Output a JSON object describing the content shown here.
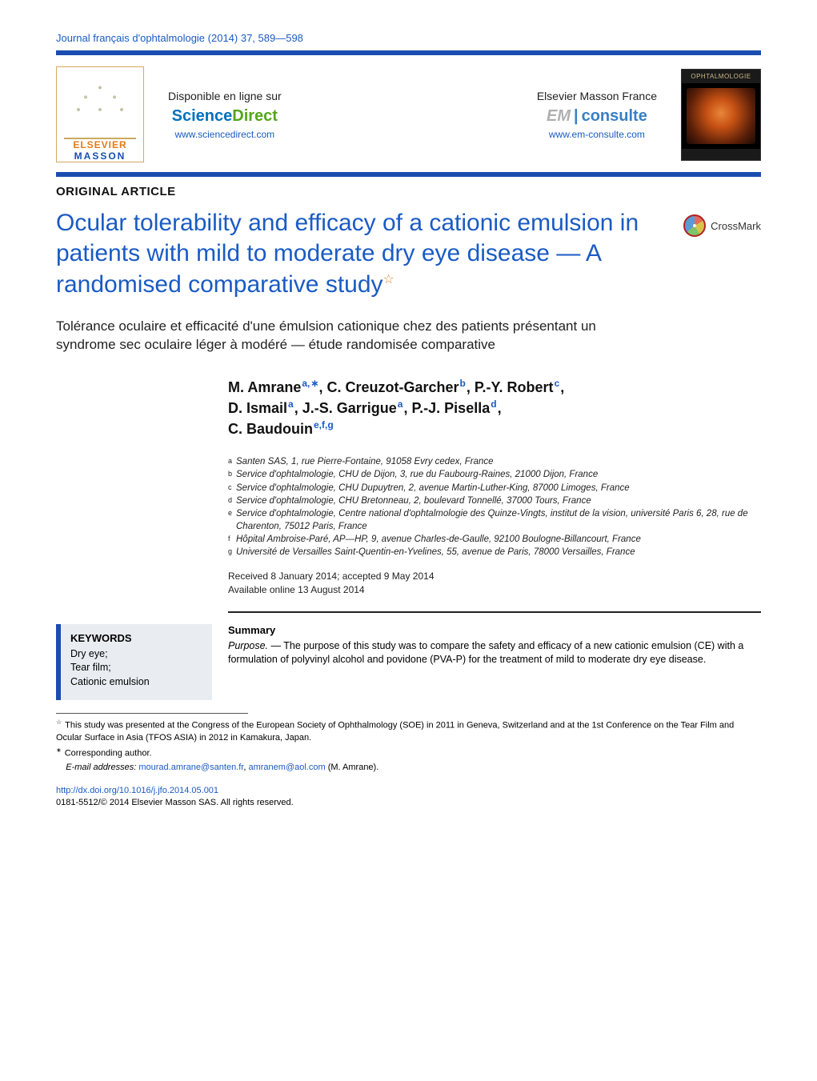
{
  "journal_header": "Journal français d'ophtalmologie (2014) 37, 589—598",
  "banner": {
    "elsevier": "ELSEVIER",
    "masson": "MASSON",
    "online_label": "Disponible en ligne sur",
    "sciencedirect_sci": "Science",
    "sciencedirect_dir": "Direct",
    "sciencedirect_url": "www.sciencedirect.com",
    "emf_label": "Elsevier Masson France",
    "em_em": "EM",
    "em_con": "consulte",
    "em_url": "www.em-consulte.com",
    "cover_title": "OPHTALMOLOGIE"
  },
  "article_type": "ORIGINAL ARTICLE",
  "title": "Ocular tolerability and efficacy of a cationic emulsion in patients with mild to moderate dry eye disease — A randomised comparative study",
  "crossmark": "CrossMark",
  "subtitle": "Tolérance oculaire et efficacité d'une émulsion cationique chez des patients présentant un syndrome sec oculaire léger à modéré — étude randomisée comparative",
  "authors": [
    {
      "name": "M. Amrane",
      "sup": "a,",
      "star": true
    },
    {
      "name": "C. Creuzot-Garcher",
      "sup": "b"
    },
    {
      "name": "P.-Y. Robert",
      "sup": "c"
    },
    {
      "name": "D. Ismail",
      "sup": "a"
    },
    {
      "name": "J.-S. Garrigue",
      "sup": "a"
    },
    {
      "name": "P.-J. Pisella",
      "sup": "d"
    },
    {
      "name": "C. Baudouin",
      "sup": "e,f,g"
    }
  ],
  "affiliations": [
    {
      "key": "a",
      "text": "Santen SAS, 1, rue Pierre-Fontaine, 91058 Evry cedex, France"
    },
    {
      "key": "b",
      "text": "Service d'ophtalmologie, CHU de Dijon, 3, rue du Faubourg-Raines, 21000 Dijon, France"
    },
    {
      "key": "c",
      "text": "Service d'ophtalmologie, CHU Dupuytren, 2, avenue Martin-Luther-King, 87000 Limoges, France"
    },
    {
      "key": "d",
      "text": "Service d'ophtalmologie, CHU Bretonneau, 2, boulevard Tonnellé, 37000 Tours, France"
    },
    {
      "key": "e",
      "text": "Service d'ophtalmologie, Centre national d'ophtalmologie des Quinze-Vingts, institut de la vision, université Paris 6, 28, rue de Charenton, 75012 Paris, France"
    },
    {
      "key": "f",
      "text": "Hôpital Ambroise-Paré, AP—HP, 9, avenue Charles-de-Gaulle, 92100 Boulogne-Billancourt, France"
    },
    {
      "key": "g",
      "text": "Université de Versailles Saint-Quentin-en-Yvelines, 55, avenue de Paris, 78000 Versailles, France"
    }
  ],
  "dates": {
    "received": "Received 8 January 2014; accepted 9 May 2014",
    "online": "Available online 13 August 2014"
  },
  "keywords": {
    "heading": "KEYWORDS",
    "items": [
      "Dry eye;",
      "Tear film;",
      "Cationic emulsion"
    ]
  },
  "abstract": {
    "heading": "Summary",
    "purpose_label": "Purpose. —",
    "purpose_text": " The purpose of this study was to compare the safety and efficacy of a new cationic emulsion (CE) with a formulation of polyvinyl alcohol and povidone (PVA-P) for the treatment of mild to moderate dry eye disease."
  },
  "footnotes": {
    "study_note": "This study was presented at the Congress of the European Society of Ophthalmology (SOE) in 2011 in Geneva, Switzerland and at the 1st Conference on the Tear Film and Ocular Surface in Asia (TFOS ASIA) in 2012 in Kamakura, Japan.",
    "corr": "Corresponding author.",
    "email_label": "E-mail addresses:",
    "email1": "mourad.amrane@santen.fr",
    "email2": "amranem@aol.com",
    "email_person": "(M. Amrane)."
  },
  "doi": {
    "url": "http://dx.doi.org/10.1016/j.jfo.2014.05.001",
    "issn": "0181-5512/© 2014 Elsevier Masson SAS. All rights reserved."
  },
  "colors": {
    "rule_blue": "#1a4db0",
    "link_blue": "#1a5bc4",
    "elsevier_orange": "#e67a17",
    "star_orange": "#e28a2b",
    "kw_bg": "#e9edf1"
  }
}
